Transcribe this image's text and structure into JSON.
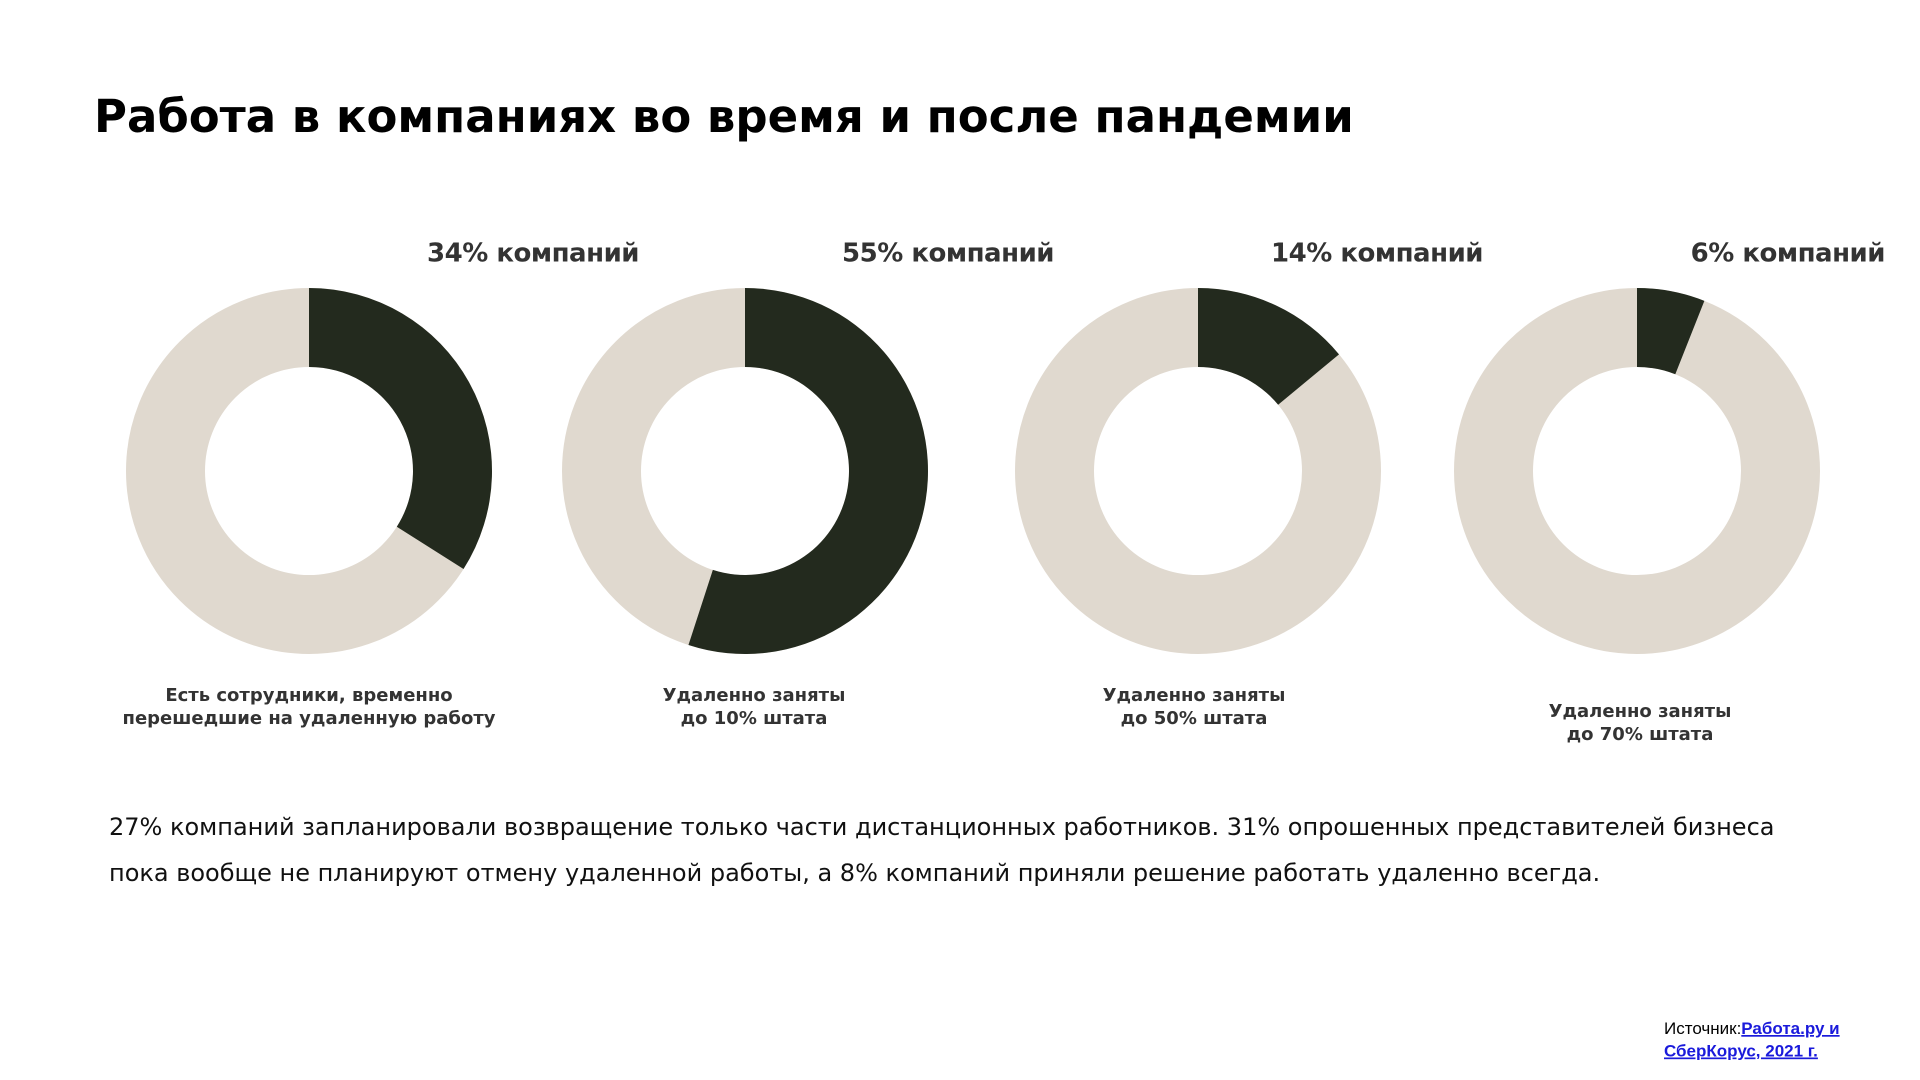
{
  "header": {
    "title": "Работа в компаниях во время и после пандемии"
  },
  "chart_data": [
    {
      "type": "donut",
      "values": [
        34
      ],
      "value_labels": [
        "34% компаний"
      ],
      "color": "#232a1e",
      "track_color": "#e0d9cf",
      "caption": [
        "Есть сотрудники, временно",
        "перешедшие на удаленную работу"
      ]
    },
    {
      "type": "donut",
      "values": [
        55
      ],
      "value_labels": [
        "55% компаний"
      ],
      "color": "#232a1e",
      "track_color": "#e0d9cf",
      "caption": [
        "Удаленно заняты",
        "до 10% штата"
      ]
    },
    {
      "type": "donut",
      "values": [
        14
      ],
      "value_labels": [
        "14% компаний"
      ],
      "color": "#232a1e",
      "track_color": "#e0d9cf",
      "caption": [
        "Удаленно заняты",
        "до 50% штата"
      ]
    },
    {
      "type": "donut",
      "values": [
        6
      ],
      "value_labels": [
        "6% компаний"
      ],
      "color": "#232a1e",
      "track_color": "#e0d9cf",
      "caption": [
        "Удаленно заняты",
        "до 70% штата"
      ]
    }
  ],
  "paragraph": [
    "27% компаний запланировали возвращение только части дистанционных работников. 31% опрошенных представителей бизнеса",
    "пока вообще не планируют отмену удаленной работы, а 8% компаний приняли решение работать удаленно всегда."
  ],
  "source": {
    "label": "Источник:",
    "link": [
      "Работа.ру и",
      "СберКорус, 2021 г."
    ]
  }
}
